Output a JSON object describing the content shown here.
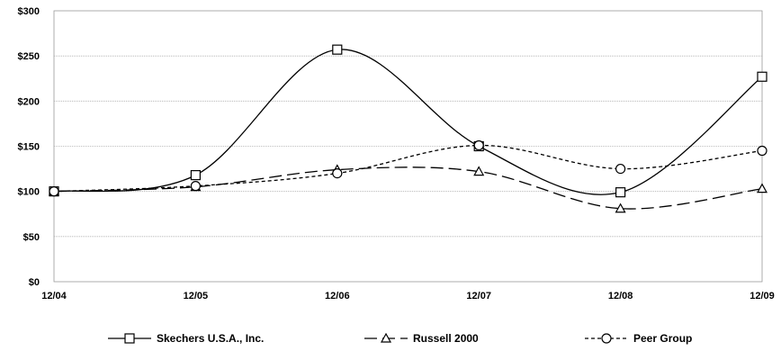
{
  "chart_data": {
    "type": "line",
    "title": "",
    "xlabel": "",
    "ylabel": "",
    "categories": [
      "12/04",
      "12/05",
      "12/06",
      "12/07",
      "12/08",
      "12/09"
    ],
    "y_ticks": [
      "$0",
      "$50",
      "$100",
      "$150",
      "$200",
      "$250",
      "$300"
    ],
    "ylim": [
      0,
      300
    ],
    "grid": "horizontal",
    "legend": "bottom",
    "series": [
      {
        "name": "Skechers U.S.A., Inc.",
        "values": [
          100,
          118,
          257,
          150,
          99,
          227
        ],
        "marker": "square",
        "dash": "solid"
      },
      {
        "name": "Russell 2000",
        "values": [
          100,
          105,
          124,
          122,
          81,
          103
        ],
        "marker": "triangle",
        "dash": "long-dash"
      },
      {
        "name": "Peer Group",
        "values": [
          100,
          106,
          120,
          151,
          125,
          145
        ],
        "marker": "circle",
        "dash": "short-dash"
      }
    ]
  }
}
